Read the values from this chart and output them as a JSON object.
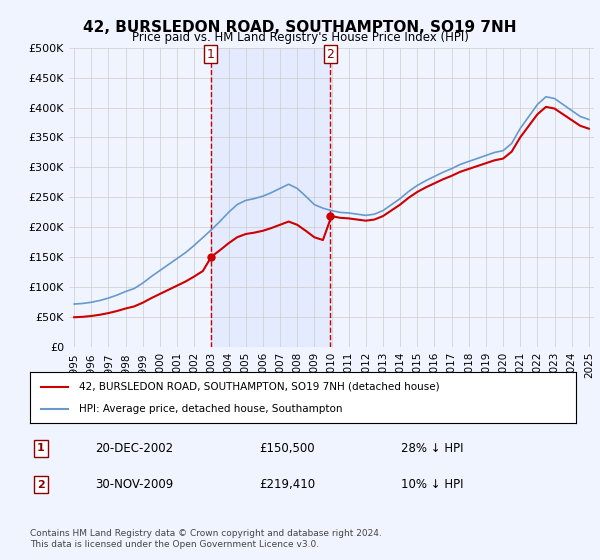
{
  "title": "42, BURSLEDON ROAD, SOUTHAMPTON, SO19 7NH",
  "subtitle": "Price paid vs. HM Land Registry's House Price Index (HPI)",
  "sale1_date": "20-DEC-2002",
  "sale1_price": 150500,
  "sale1_label": "28% ↓ HPI",
  "sale2_date": "30-NOV-2009",
  "sale2_price": 219410,
  "sale2_label": "10% ↓ HPI",
  "legend_entry1": "42, BURSLEDON ROAD, SOUTHAMPTON, SO19 7NH (detached house)",
  "legend_entry2": "HPI: Average price, detached house, Southampton",
  "footnote": "Contains HM Land Registry data © Crown copyright and database right 2024.\nThis data is licensed under the Open Government Licence v3.0.",
  "bg_color": "#f0f4ff",
  "plot_bg_color": "#ffffff",
  "hpi_color": "#6699cc",
  "price_color": "#cc0000",
  "vline_color": "#cc0000",
  "ylim": [
    0,
    500000
  ],
  "yticks": [
    0,
    50000,
    100000,
    150000,
    200000,
    250000,
    300000,
    350000,
    400000,
    450000,
    500000
  ],
  "sale1_x": 2002.97,
  "sale2_x": 2009.92
}
